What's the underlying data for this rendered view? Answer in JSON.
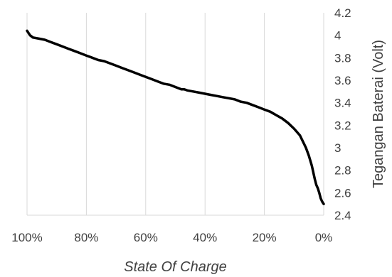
{
  "chart_data": {
    "type": "line",
    "title": "",
    "xlabel": "State Of Charge",
    "ylabel": "Tegangan Baterai (Volt)",
    "x_unit": "%",
    "x_reversed": true,
    "xlim": [
      0,
      100
    ],
    "ylim": [
      2.4,
      4.2
    ],
    "x_ticks": [
      100,
      80,
      60,
      40,
      20,
      0
    ],
    "x_tick_labels": [
      "100%",
      "80%",
      "60%",
      "40%",
      "20%",
      "0%"
    ],
    "y_ticks": [
      2.4,
      2.6,
      2.8,
      3.0,
      3.2,
      3.4,
      3.6,
      3.8,
      4.0,
      4.2
    ],
    "y_tick_labels": [
      "2.4",
      "2.6",
      "2.8",
      "3",
      "3.2",
      "3.4",
      "3.6",
      "3.8",
      "4",
      "4.2"
    ],
    "y_axis_position": "right",
    "grid": "vertical",
    "line_color": "#000000",
    "grid_color": "#d9d9d9",
    "series": [
      {
        "x": [
          100,
          99,
          98,
          96,
          94,
          92,
          90,
          88,
          86,
          84,
          82,
          80,
          78,
          76,
          74,
          72,
          70,
          68,
          66,
          64,
          62,
          60,
          58,
          56,
          54,
          52,
          50,
          48,
          47,
          46,
          44,
          42,
          40,
          38,
          36,
          34,
          32,
          30,
          28,
          26,
          24,
          22,
          20,
          18,
          16,
          14,
          12,
          10,
          8,
          6,
          5,
          4,
          3,
          2.5,
          2,
          1.5,
          1,
          0.5,
          0
        ],
        "y": [
          4.04,
          4.0,
          3.98,
          3.97,
          3.96,
          3.94,
          3.92,
          3.9,
          3.88,
          3.86,
          3.84,
          3.82,
          3.8,
          3.78,
          3.77,
          3.75,
          3.73,
          3.71,
          3.69,
          3.67,
          3.65,
          3.63,
          3.61,
          3.59,
          3.57,
          3.56,
          3.54,
          3.52,
          3.52,
          3.51,
          3.5,
          3.49,
          3.48,
          3.47,
          3.46,
          3.45,
          3.44,
          3.43,
          3.41,
          3.4,
          3.38,
          3.36,
          3.34,
          3.32,
          3.29,
          3.26,
          3.22,
          3.17,
          3.11,
          3.0,
          2.93,
          2.84,
          2.72,
          2.67,
          2.64,
          2.6,
          2.55,
          2.52,
          2.5
        ]
      }
    ]
  }
}
